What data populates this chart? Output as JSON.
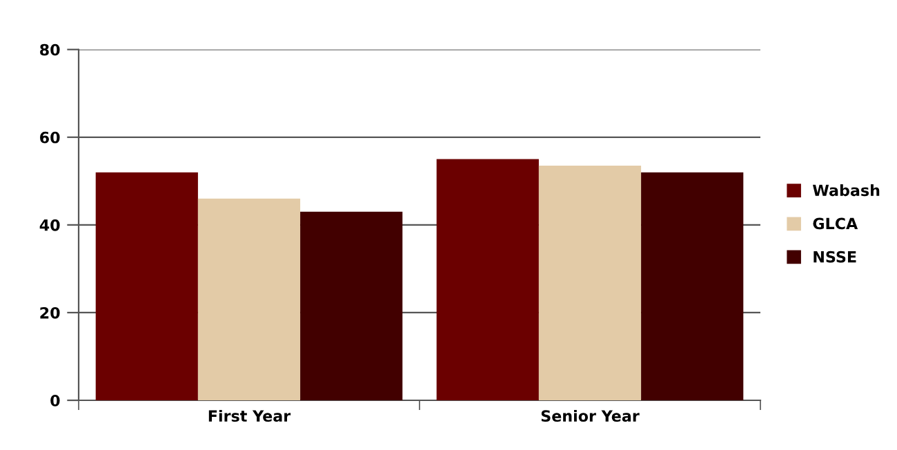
{
  "chart_data": {
    "type": "bar",
    "categories": [
      "First Year",
      "Senior Year"
    ],
    "series": [
      {
        "name": "Wabash",
        "color": "#6b0000",
        "values": [
          52,
          55
        ]
      },
      {
        "name": "GLCA",
        "color": "#e3cba7",
        "values": [
          46,
          53.5
        ]
      },
      {
        "name": "NSSE",
        "color": "#420000",
        "values": [
          43,
          52
        ]
      }
    ],
    "ylim": [
      0,
      80
    ],
    "yticks": [
      0,
      20,
      40,
      60,
      80
    ],
    "grid": "y",
    "legend": "right"
  }
}
